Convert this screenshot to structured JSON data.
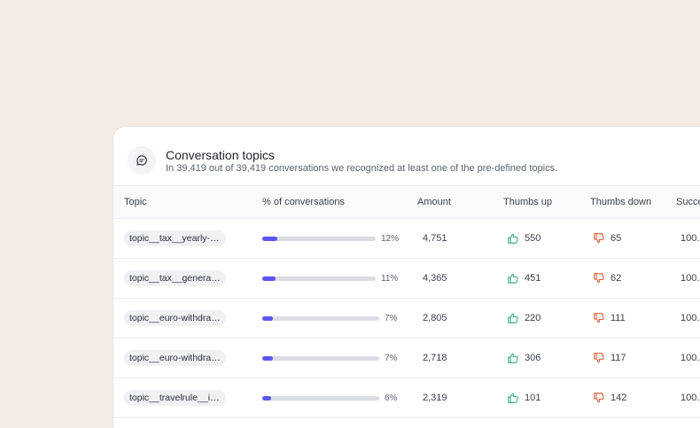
{
  "panel": {
    "title": "Conversation topics",
    "subtitle": "In 39,419 out of 39,419 conversations we recognized at least one of the pre-defined topics."
  },
  "columns": {
    "topic": "Topic",
    "percent": "% of conversations",
    "amount": "Amount",
    "thumbs_up": "Thumbs up",
    "thumbs_down": "Thumbs down",
    "success": "Succe"
  },
  "rows": [
    {
      "topic": "topic__tax__yearly-overv...",
      "percent_label": "12%",
      "percent": 12,
      "amount": "4,751",
      "thumbs_up": "550",
      "thumbs_down": "65",
      "success": "100."
    },
    {
      "topic": "topic__tax__general__inf...",
      "percent_label": "11%",
      "percent": 11,
      "amount": "4,365",
      "thumbs_up": "451",
      "thumbs_down": "62",
      "success": "100."
    },
    {
      "topic": "topic__euro-withdrawal_...",
      "percent_label": "7%",
      "percent": 7,
      "amount": "2,805",
      "thumbs_up": "220",
      "thumbs_down": "111",
      "success": "100."
    },
    {
      "topic": "topic__euro-withdrawal_...",
      "percent_label": "7%",
      "percent": 7,
      "amount": "2,718",
      "thumbs_up": "306",
      "thumbs_down": "117",
      "success": "100."
    },
    {
      "topic": "topic__travelrule__instru...",
      "percent_label": "6%",
      "percent": 6,
      "amount": "2,319",
      "thumbs_up": "101",
      "thumbs_down": "142",
      "success": "100."
    }
  ],
  "colors": {
    "background": "#f2ebe6",
    "bar_fill": "#5b55ef",
    "thumbs_up": "#3fae8f",
    "thumbs_down": "#e0643f"
  },
  "icons": {
    "header": "chat-bubble-icon",
    "up": "thumbs-up-icon",
    "down": "thumbs-down-icon"
  }
}
